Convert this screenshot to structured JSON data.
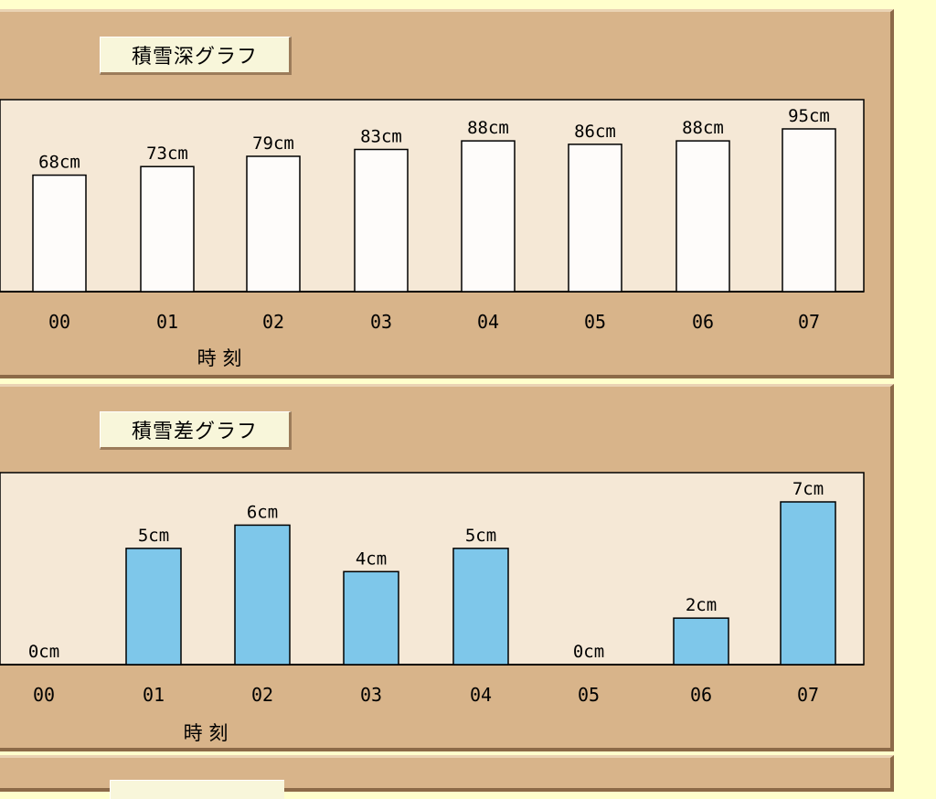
{
  "chart_data": [
    {
      "type": "bar",
      "title": "積雪深グラフ",
      "categories": [
        "00",
        "01",
        "02",
        "03",
        "04",
        "05",
        "06",
        "07"
      ],
      "values": [
        68,
        73,
        79,
        83,
        88,
        86,
        88,
        95
      ],
      "value_labels": [
        "68cm",
        "73cm",
        "79cm",
        "83cm",
        "88cm",
        "86cm",
        "88cm",
        "95cm"
      ],
      "unit": "cm",
      "xlabel": "時 刻",
      "ylabel": "",
      "ylim": [
        0,
        95
      ],
      "bar_color": "#fefcfa",
      "plot_bg": "#f5e8d6"
    },
    {
      "type": "bar",
      "title": "積雪差グラフ",
      "categories": [
        "00",
        "01",
        "02",
        "03",
        "04",
        "05",
        "06",
        "07"
      ],
      "values": [
        0,
        5,
        6,
        4,
        5,
        0,
        2,
        7
      ],
      "value_labels": [
        "0cm",
        "5cm",
        "6cm",
        "4cm",
        "5cm",
        "0cm",
        "2cm",
        "7cm"
      ],
      "unit": "cm",
      "xlabel": "時 刻",
      "ylabel": "",
      "ylim": [
        0,
        7
      ],
      "bar_color": "#7ec7ea",
      "plot_bg": "#f5e8d6"
    }
  ]
}
